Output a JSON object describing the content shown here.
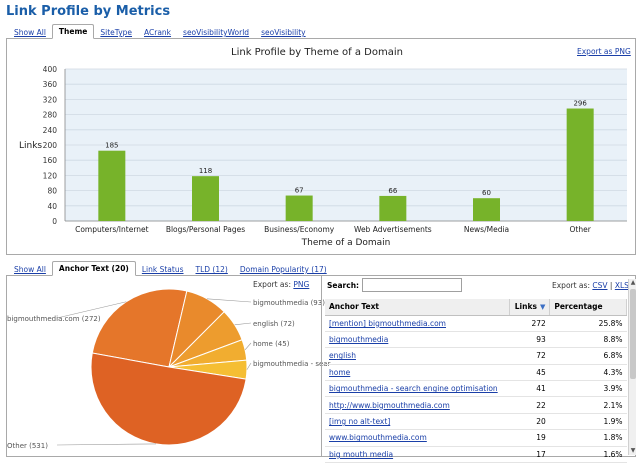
{
  "page_title": "Link Profile by Metrics",
  "top_tabs": [
    {
      "label": "Show All",
      "active": false
    },
    {
      "label": "Theme",
      "active": true
    },
    {
      "label": "SiteType",
      "active": false
    },
    {
      "label": "ACrank",
      "active": false
    },
    {
      "label": "seoVisibilityWorld",
      "active": false
    },
    {
      "label": "seoVisibility",
      "active": false
    }
  ],
  "theme_chart": {
    "export_label": "Export as PNG"
  },
  "chart_data": [
    {
      "type": "bar",
      "title": "Link Profile by Theme of a Domain",
      "xlabel": "Theme of a Domain",
      "ylabel": "Links",
      "categories": [
        "Computers/Internet",
        "Blogs/Personal Pages",
        "Business/Economy",
        "Web Advertisements",
        "News/Media",
        "Other"
      ],
      "values": [
        185,
        118,
        67,
        66,
        60,
        296
      ],
      "ylim": [
        0,
        400
      ],
      "yticks": [
        0,
        40,
        80,
        120,
        160,
        200,
        240,
        280,
        320,
        360,
        400
      ],
      "grid": true,
      "color": "#77b32a"
    },
    {
      "type": "pie",
      "categories": [
        "bigmouthmedia.com (272)",
        "bigmouthmedia (93)",
        "english (72)",
        "home (45)",
        "bigmouthmedia - sear",
        "Other (531)"
      ],
      "values": [
        272,
        93,
        72,
        45,
        41,
        531
      ],
      "colors": [
        "#e5762a",
        "#e98a2c",
        "#ed9c2e",
        "#f1ad30",
        "#f5be33",
        "#de6224"
      ]
    }
  ],
  "bottom_tabs": [
    {
      "label": "Show All",
      "active": false
    },
    {
      "label": "Anchor Text (20)",
      "active": true
    },
    {
      "label": "Link Status",
      "active": false
    },
    {
      "label": "TLD (12)",
      "active": false
    },
    {
      "label": "Domain Popularity (17)",
      "active": false
    }
  ],
  "pie_export": {
    "prefix": "Export as:",
    "link": "PNG"
  },
  "search": {
    "label": "Search:",
    "value": "",
    "placeholder": ""
  },
  "table_export": {
    "prefix": "Export as:",
    "csv": "CSV",
    "sep": "|",
    "xls": "XLS"
  },
  "table": {
    "columns": [
      "Anchor Text",
      "Links",
      "Percentage"
    ],
    "sort_icon": "sort-down-icon",
    "rows": [
      {
        "text": "[mention] bigmouthmedia.com",
        "links": "272",
        "pct": "25.8%"
      },
      {
        "text": "bigmouthmedia",
        "links": "93",
        "pct": "8.8%"
      },
      {
        "text": "english",
        "links": "72",
        "pct": "6.8%"
      },
      {
        "text": "home",
        "links": "45",
        "pct": "4.3%"
      },
      {
        "text": "bigmouthmedia - search engine optimisation",
        "links": "41",
        "pct": "3.9%"
      },
      {
        "text": "http://www.bigmouthmedia.com",
        "links": "22",
        "pct": "2.1%"
      },
      {
        "text": "[img no alt-text]",
        "links": "20",
        "pct": "1.9%"
      },
      {
        "text": "www.bigmouthmedia.com",
        "links": "19",
        "pct": "1.8%"
      },
      {
        "text": "big mouth media",
        "links": "17",
        "pct": "1.6%"
      }
    ]
  }
}
